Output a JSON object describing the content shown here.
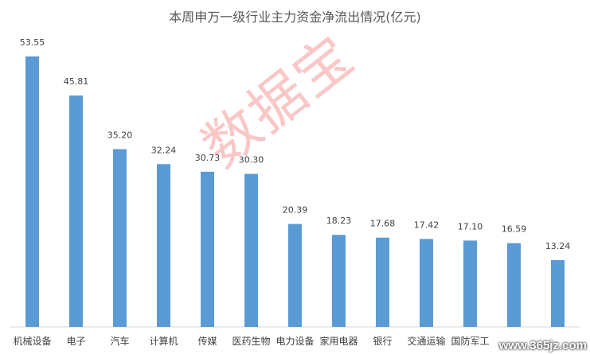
{
  "chart_data": {
    "type": "bar",
    "title": "本周申万一级行业主力资金净流出情况(亿元)",
    "categories": [
      "机械设备",
      "电子",
      "汽车",
      "计算机",
      "传媒",
      "医药生物",
      "电力设备",
      "家用电器",
      "银行",
      "交通运输",
      "国防军工",
      "",
      ""
    ],
    "values": [
      53.55,
      45.81,
      35.2,
      32.24,
      30.73,
      30.3,
      20.39,
      18.23,
      17.68,
      17.42,
      17.1,
      16.59,
      13.24
    ],
    "value_labels": [
      "53.55",
      "45.81",
      "35.20",
      "32.24",
      "30.73",
      "30.30",
      "20.39",
      "18.23",
      "17.68",
      "17.42",
      "17.10",
      "16.59",
      "13.24"
    ],
    "ylim": [
      0,
      60
    ],
    "grid": false,
    "legend": "none",
    "bar_color": "#5B9BD5"
  },
  "watermark": "数据宝",
  "site_logo": "www.365jz.com"
}
